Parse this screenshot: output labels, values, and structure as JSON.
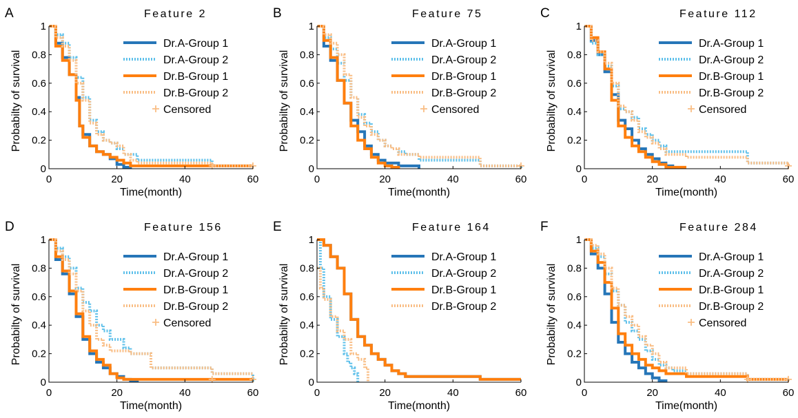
{
  "colors": {
    "blue": "#2676b8",
    "light_blue": "#5ec0ea",
    "orange": "#ff7f0e",
    "light_orange": "#f9bd84"
  },
  "legend": {
    "entries": [
      {
        "label": "Dr.A-Group 1",
        "color": "#2676b8",
        "style": "solid"
      },
      {
        "label": "Dr.A-Group 2",
        "color": "#5ec0ea",
        "style": "dotted"
      },
      {
        "label": "Dr.B-Group 1",
        "color": "#ff7f0e",
        "style": "solid"
      },
      {
        "label": "Dr.B-Group 2",
        "color": "#f9bd84",
        "style": "dotted"
      },
      {
        "label": "Censored",
        "color": "#f9bd84",
        "style": "marker-plus"
      }
    ]
  },
  "chart_data": [
    {
      "type": "line",
      "panel": "A",
      "title": "Feature 2",
      "xlabel": "Time(month)",
      "ylabel": "Probabilty of survival",
      "xlim": [
        0,
        60
      ],
      "ylim": [
        0,
        1
      ],
      "xticks": [
        0,
        20,
        40,
        60
      ],
      "yticks": [
        0,
        0.2,
        0.4,
        0.6,
        0.8,
        1
      ],
      "ytick_labels": [
        "0",
        "0.2",
        "0.4",
        "0.6",
        "0.8",
        "1"
      ],
      "legend_entries": 5,
      "series": [
        {
          "name": "Dr.A-Group 1",
          "x": [
            0,
            2,
            4,
            6,
            8,
            9,
            10,
            12,
            14,
            16,
            18,
            20,
            22,
            24
          ],
          "y": [
            1.0,
            0.88,
            0.78,
            0.66,
            0.5,
            0.3,
            0.24,
            0.16,
            0.12,
            0.1,
            0.07,
            0.03,
            0.01,
            0.0
          ]
        },
        {
          "name": "Dr.A-Group 2",
          "x": [
            0,
            2,
            4,
            6,
            8,
            10,
            12,
            14,
            16,
            18,
            20,
            22,
            26,
            30,
            48,
            60
          ],
          "y": [
            1.0,
            0.94,
            0.88,
            0.78,
            0.64,
            0.5,
            0.34,
            0.26,
            0.2,
            0.18,
            0.14,
            0.1,
            0.06,
            0.06,
            0.02,
            0.02
          ]
        },
        {
          "name": "Dr.B-Group 1",
          "x": [
            0,
            2,
            4,
            6,
            8,
            9,
            10,
            12,
            14,
            16,
            18,
            20,
            22,
            24,
            60
          ],
          "y": [
            1.0,
            0.86,
            0.76,
            0.66,
            0.48,
            0.3,
            0.22,
            0.16,
            0.12,
            0.1,
            0.08,
            0.06,
            0.04,
            0.02,
            0.02
          ]
        },
        {
          "name": "Dr.B-Group 2",
          "x": [
            0,
            2,
            4,
            6,
            8,
            10,
            12,
            14,
            16,
            18,
            20,
            22,
            24,
            26,
            48,
            60
          ],
          "y": [
            1.0,
            0.92,
            0.86,
            0.76,
            0.6,
            0.48,
            0.32,
            0.24,
            0.2,
            0.18,
            0.16,
            0.1,
            0.06,
            0.04,
            0.02,
            0.02
          ]
        }
      ],
      "censored": {
        "x": [
          48,
          60
        ],
        "y": [
          0.02,
          0.02
        ]
      }
    },
    {
      "type": "line",
      "panel": "B",
      "title": "Feature 75",
      "xlabel": "Time(month)",
      "ylabel": "Probabilty of survival",
      "xlim": [
        0,
        60
      ],
      "ylim": [
        0,
        1
      ],
      "xticks": [
        0,
        20,
        40,
        60
      ],
      "yticks": [
        0,
        0.2,
        0.4,
        0.6,
        0.8,
        1
      ],
      "ytick_labels": [
        "0",
        "0.2",
        "0.4",
        "0.6",
        "0.8",
        "1"
      ],
      "legend_entries": 5,
      "series": [
        {
          "name": "Dr.A-Group 1",
          "x": [
            0,
            2,
            4,
            6,
            8,
            10,
            12,
            14,
            16,
            18,
            20,
            24,
            30
          ],
          "y": [
            1.0,
            0.86,
            0.76,
            0.62,
            0.46,
            0.34,
            0.26,
            0.16,
            0.1,
            0.06,
            0.04,
            0.02,
            0.0
          ]
        },
        {
          "name": "Dr.A-Group 2",
          "x": [
            0,
            2,
            4,
            6,
            8,
            10,
            12,
            14,
            16,
            18,
            20,
            22,
            24,
            26,
            30,
            48,
            60
          ],
          "y": [
            1.0,
            0.92,
            0.84,
            0.74,
            0.62,
            0.5,
            0.38,
            0.32,
            0.26,
            0.2,
            0.16,
            0.14,
            0.12,
            0.1,
            0.06,
            0.02,
            0.0
          ]
        },
        {
          "name": "Dr.B-Group 1",
          "x": [
            0,
            2,
            4,
            6,
            8,
            10,
            12,
            14,
            16,
            18,
            20,
            22,
            24
          ],
          "y": [
            1.0,
            0.9,
            0.78,
            0.62,
            0.46,
            0.3,
            0.2,
            0.14,
            0.08,
            0.04,
            0.02,
            0.01,
            0.0
          ]
        },
        {
          "name": "Dr.B-Group 2",
          "x": [
            0,
            2,
            4,
            6,
            8,
            10,
            12,
            14,
            16,
            18,
            20,
            22,
            24,
            30,
            48,
            60
          ],
          "y": [
            1.0,
            0.94,
            0.88,
            0.8,
            0.66,
            0.5,
            0.36,
            0.3,
            0.24,
            0.2,
            0.16,
            0.14,
            0.1,
            0.08,
            0.02,
            0.02
          ]
        }
      ],
      "censored": {
        "x": [
          60
        ],
        "y": [
          0.02
        ]
      }
    },
    {
      "type": "line",
      "panel": "C",
      "title": "Feature 112",
      "xlabel": "Time(month)",
      "ylabel": "Probabilty of survival",
      "xlim": [
        0,
        60
      ],
      "ylim": [
        0,
        1
      ],
      "xticks": [
        0,
        20,
        40,
        60
      ],
      "yticks": [
        0,
        0.2,
        0.4,
        0.6,
        0.8,
        1
      ],
      "ytick_labels": [
        "0",
        "0.2",
        "0.4",
        "0.6",
        "0.8",
        "1"
      ],
      "legend_entries": 5,
      "series": [
        {
          "name": "Dr.A-Group 1",
          "x": [
            0,
            2,
            4,
            6,
            8,
            10,
            12,
            14,
            16,
            18,
            20,
            22,
            24,
            26
          ],
          "y": [
            1.0,
            0.9,
            0.8,
            0.68,
            0.52,
            0.34,
            0.28,
            0.2,
            0.14,
            0.1,
            0.07,
            0.04,
            0.02,
            0.0
          ]
        },
        {
          "name": "Dr.A-Group 2",
          "x": [
            0,
            2,
            4,
            6,
            8,
            10,
            12,
            14,
            16,
            18,
            20,
            22,
            24,
            30,
            48,
            60
          ],
          "y": [
            1.0,
            0.88,
            0.8,
            0.72,
            0.58,
            0.42,
            0.4,
            0.36,
            0.28,
            0.24,
            0.2,
            0.16,
            0.12,
            0.12,
            0.04,
            0.02
          ]
        },
        {
          "name": "Dr.B-Group 1",
          "x": [
            0,
            2,
            4,
            6,
            8,
            10,
            12,
            14,
            16,
            18,
            20,
            22,
            24,
            30
          ],
          "y": [
            1.0,
            0.92,
            0.82,
            0.7,
            0.48,
            0.3,
            0.22,
            0.16,
            0.12,
            0.08,
            0.05,
            0.03,
            0.01,
            0.01
          ]
        },
        {
          "name": "Dr.B-Group 2",
          "x": [
            0,
            2,
            4,
            6,
            8,
            10,
            12,
            14,
            16,
            18,
            20,
            22,
            24,
            30,
            48,
            60
          ],
          "y": [
            1.0,
            0.9,
            0.82,
            0.74,
            0.6,
            0.44,
            0.4,
            0.34,
            0.26,
            0.22,
            0.18,
            0.14,
            0.1,
            0.08,
            0.04,
            0.02
          ]
        }
      ],
      "censored": {
        "x": [
          60
        ],
        "y": [
          0.02
        ]
      }
    },
    {
      "type": "line",
      "panel": "D",
      "title": "Feature 156",
      "xlabel": "Time(month)",
      "ylabel": "Probabilty of survival",
      "xlim": [
        0,
        60
      ],
      "ylim": [
        0,
        1
      ],
      "xticks": [
        0,
        20,
        40,
        60
      ],
      "yticks": [
        0,
        0.2,
        0.4,
        0.6,
        0.8,
        1
      ],
      "ytick_labels": [
        "0",
        "0.2",
        "0.4",
        "0.6",
        "0.8",
        "1"
      ],
      "legend_entries": 5,
      "series": [
        {
          "name": "Dr.A-Group 1",
          "x": [
            0,
            2,
            4,
            6,
            8,
            10,
            12,
            14,
            16,
            18,
            20,
            22,
            24,
            26
          ],
          "y": [
            1.0,
            0.86,
            0.76,
            0.62,
            0.46,
            0.3,
            0.2,
            0.14,
            0.1,
            0.06,
            0.04,
            0.02,
            0.01,
            0.0
          ]
        },
        {
          "name": "Dr.A-Group 2",
          "x": [
            0,
            2,
            4,
            6,
            8,
            10,
            12,
            14,
            16,
            18,
            20,
            22,
            24,
            26,
            30,
            48,
            60
          ],
          "y": [
            1.0,
            0.94,
            0.88,
            0.8,
            0.66,
            0.56,
            0.5,
            0.4,
            0.36,
            0.3,
            0.3,
            0.24,
            0.2,
            0.2,
            0.1,
            0.06,
            0.0
          ]
        },
        {
          "name": "Dr.B-Group 1",
          "x": [
            0,
            2,
            4,
            6,
            8,
            10,
            12,
            14,
            16,
            18,
            20,
            22,
            24,
            30,
            48,
            60
          ],
          "y": [
            1.0,
            0.88,
            0.78,
            0.64,
            0.48,
            0.32,
            0.22,
            0.16,
            0.12,
            0.06,
            0.03,
            0.02,
            0.02,
            0.02,
            0.02,
            0.02
          ]
        },
        {
          "name": "Dr.B-Group 2",
          "x": [
            0,
            2,
            4,
            6,
            8,
            10,
            12,
            14,
            16,
            18,
            20,
            24,
            30,
            48,
            60
          ],
          "y": [
            1.0,
            0.92,
            0.86,
            0.76,
            0.64,
            0.5,
            0.4,
            0.3,
            0.26,
            0.22,
            0.22,
            0.2,
            0.1,
            0.06,
            0.06
          ]
        }
      ],
      "censored": {
        "x": [
          48,
          60
        ],
        "y": [
          0.02,
          0.02
        ]
      }
    },
    {
      "type": "line",
      "panel": "E",
      "title": "Feature 164",
      "xlabel": "Time(month)",
      "ylabel": "Probabilty of survival",
      "xlim": [
        0,
        60
      ],
      "ylim": [
        0,
        1
      ],
      "xticks": [
        0,
        20,
        40,
        60
      ],
      "yticks": [
        0,
        0.2,
        0.4,
        0.6,
        0.8,
        1
      ],
      "ytick_labels": [
        "0",
        "0.2",
        "0.4",
        "0.6",
        "0.8",
        "1"
      ],
      "legend_entries": 4,
      "series": [
        {
          "name": "Dr.A-Group 1",
          "x": [
            0,
            2,
            4,
            6,
            8,
            10,
            12,
            14,
            16,
            18,
            20,
            22,
            24,
            26,
            30,
            48,
            60
          ],
          "y": [
            1.0,
            0.96,
            0.88,
            0.8,
            0.62,
            0.44,
            0.32,
            0.26,
            0.2,
            0.16,
            0.12,
            0.08,
            0.06,
            0.04,
            0.04,
            0.02,
            0.02
          ]
        },
        {
          "name": "Dr.A-Group 2",
          "x": [
            0,
            1,
            2,
            4,
            6,
            8,
            9,
            10,
            11,
            12
          ],
          "y": [
            1.0,
            0.8,
            0.6,
            0.44,
            0.32,
            0.2,
            0.14,
            0.1,
            0.06,
            0.0
          ]
        },
        {
          "name": "Dr.B-Group 1",
          "x": [
            0,
            2,
            4,
            6,
            8,
            10,
            12,
            14,
            16,
            18,
            20,
            22,
            24,
            26,
            30,
            48,
            60
          ],
          "y": [
            1.0,
            0.96,
            0.88,
            0.8,
            0.62,
            0.44,
            0.32,
            0.26,
            0.2,
            0.16,
            0.12,
            0.08,
            0.06,
            0.04,
            0.04,
            0.02,
            0.02
          ]
        },
        {
          "name": "Dr.B-Group 2",
          "x": [
            0,
            1,
            2,
            4,
            6,
            8,
            10,
            12,
            14,
            15
          ],
          "y": [
            0.8,
            0.66,
            0.58,
            0.46,
            0.36,
            0.3,
            0.2,
            0.16,
            0.1,
            0.0
          ]
        }
      ],
      "censored": {
        "x": [],
        "y": []
      }
    },
    {
      "type": "line",
      "panel": "F",
      "title": "Feature 284",
      "xlabel": "Time(month)",
      "ylabel": "Probabilty of survival",
      "xlim": [
        0,
        60
      ],
      "ylim": [
        0,
        1
      ],
      "xticks": [
        0,
        20,
        40,
        60
      ],
      "yticks": [
        0,
        0.2,
        0.4,
        0.6,
        0.8,
        1
      ],
      "ytick_labels": [
        "0",
        "0.2",
        "0.4",
        "0.6",
        "0.8",
        "1"
      ],
      "legend_entries": 5,
      "series": [
        {
          "name": "Dr.A-Group 1",
          "x": [
            0,
            2,
            4,
            6,
            8,
            10,
            12,
            14,
            16,
            18,
            20,
            22,
            24
          ],
          "y": [
            1.0,
            0.9,
            0.8,
            0.62,
            0.42,
            0.28,
            0.2,
            0.14,
            0.1,
            0.06,
            0.03,
            0.01,
            0.0
          ]
        },
        {
          "name": "Dr.A-Group 2",
          "x": [
            0,
            2,
            4,
            6,
            8,
            10,
            12,
            14,
            16,
            18,
            20,
            22,
            24,
            26,
            30,
            48,
            60
          ],
          "y": [
            1.0,
            0.94,
            0.88,
            0.76,
            0.64,
            0.54,
            0.42,
            0.36,
            0.3,
            0.22,
            0.16,
            0.12,
            0.1,
            0.08,
            0.06,
            0.02,
            0.02
          ]
        },
        {
          "name": "Dr.B-Group 1",
          "x": [
            0,
            2,
            4,
            6,
            8,
            10,
            12,
            14,
            16,
            18,
            20,
            22,
            24,
            30,
            48,
            60
          ],
          "y": [
            1.0,
            0.92,
            0.84,
            0.7,
            0.52,
            0.34,
            0.26,
            0.2,
            0.16,
            0.12,
            0.1,
            0.08,
            0.06,
            0.04,
            0.02,
            0.02
          ]
        },
        {
          "name": "Dr.B-Group 2",
          "x": [
            0,
            2,
            4,
            6,
            8,
            10,
            12,
            14,
            16,
            18,
            20,
            22,
            24,
            30,
            48,
            60
          ],
          "y": [
            1.0,
            0.96,
            0.9,
            0.8,
            0.66,
            0.54,
            0.46,
            0.4,
            0.32,
            0.26,
            0.2,
            0.14,
            0.1,
            0.06,
            0.02,
            0.01
          ]
        }
      ],
      "censored": {
        "x": [
          48,
          60
        ],
        "y": [
          0.02,
          0.02
        ]
      }
    }
  ]
}
